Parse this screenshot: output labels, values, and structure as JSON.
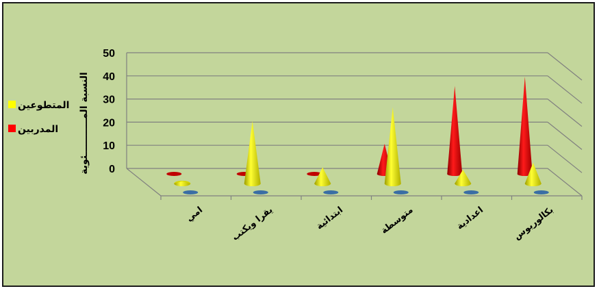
{
  "chart_data": {
    "type": "bar",
    "style": "3d-cone",
    "categories": [
      "امي",
      "يقرا ويكتب",
      "ابتدائية",
      "متوسطة",
      "اعدادية",
      "بكالوريوس"
    ],
    "series": [
      {
        "name": "المدربين",
        "values": [
          0,
          0,
          0,
          13,
          38,
          42
        ]
      },
      {
        "name": "المتطوعين",
        "values": [
          1,
          27,
          7,
          33,
          6,
          9
        ]
      },
      {
        "name": "",
        "values": [
          0,
          0,
          0,
          0,
          0,
          0
        ]
      }
    ],
    "yticks": [
      "0",
      "10",
      "20",
      "30",
      "40",
      "50"
    ],
    "ylim": [
      0,
      50
    ],
    "ylabel": "النسبة المـــــــــــئوية",
    "legend_placement": "left",
    "grid": true,
    "colors": {
      "series": [
        "#ff0000",
        "#ffff00",
        "#4f81bd"
      ],
      "background": "#c3d69b"
    }
  }
}
